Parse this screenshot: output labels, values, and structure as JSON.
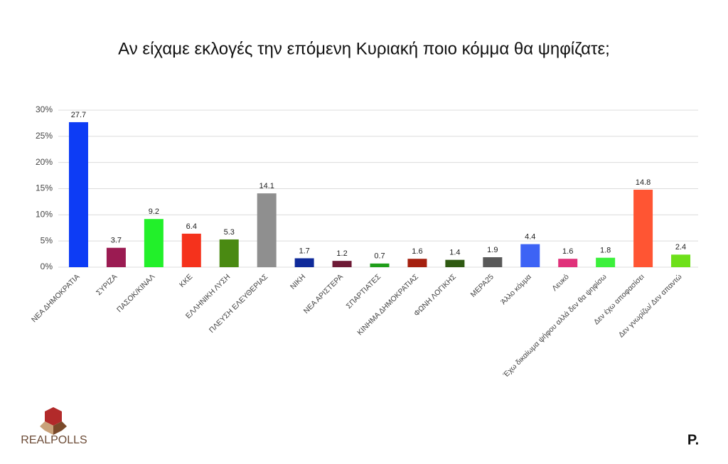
{
  "chart_data": {
    "type": "bar",
    "title": "Αν είχαμε εκλογές την επόμενη Κυριακή ποιο κόμμα θα ψηφίζατε;",
    "categories": [
      "ΝΕΑ ΔΗΜΟΚΡΑΤΙΑ",
      "ΣΥΡΙΖΑ",
      "ΠΑΣΟΚ/ΚΙΝΑΛ",
      "ΚΚΕ",
      "ΕΛΛΗΝΙΚΗ ΛΥΣΗ",
      "ΠΛΕΥΣΗ ΕΛΕΥΘΕΡΙΑΣ",
      "ΝΙΚΗ",
      "ΝΕΑ ΑΡΙΣΤΕΡΑ",
      "ΣΠΑΡΤΙΑΤΕΣ",
      "ΚΙΝΗΜΑ ΔΗΜΟΚΡΑΤΙΑΣ",
      "ΦΩΝΗ ΛΟΓΙΚΗΣ",
      "ΜΕΡΑ25",
      "Άλλο κόμμα",
      "Λευκό",
      "Έχω δικαίωμα ψήφου αλλά δεν θα ψηφίσω",
      "Δεν έχω αποφασίσει",
      "Δεν γνωρίζω/ Δεν απαντώ"
    ],
    "values": [
      27.7,
      3.7,
      9.2,
      6.4,
      5.3,
      14.1,
      1.7,
      1.2,
      0.7,
      1.6,
      1.4,
      1.9,
      4.4,
      1.6,
      1.8,
      14.8,
      2.4
    ],
    "colors": [
      "#0d3cf5",
      "#9b1b52",
      "#22f02a",
      "#f5321c",
      "#4a8a12",
      "#8f8f8f",
      "#0f2a9a",
      "#6e1a36",
      "#1f9e1a",
      "#a5200f",
      "#2f5a12",
      "#595959",
      "#3d63f5",
      "#e0317a",
      "#3cf03c",
      "#ff5533",
      "#6ee01a"
    ],
    "ylim": [
      0,
      30
    ],
    "yticks": [
      {
        "value": 0,
        "label": "0%"
      },
      {
        "value": 5,
        "label": "5%"
      },
      {
        "value": 10,
        "label": "10%"
      },
      {
        "value": 15,
        "label": "15%"
      },
      {
        "value": 20,
        "label": "20%"
      },
      {
        "value": 25,
        "label": "25%"
      },
      {
        "value": 30,
        "label": "30%"
      }
    ],
    "grid": true
  },
  "logos": {
    "left": "REALPOLLS",
    "right": "P."
  }
}
